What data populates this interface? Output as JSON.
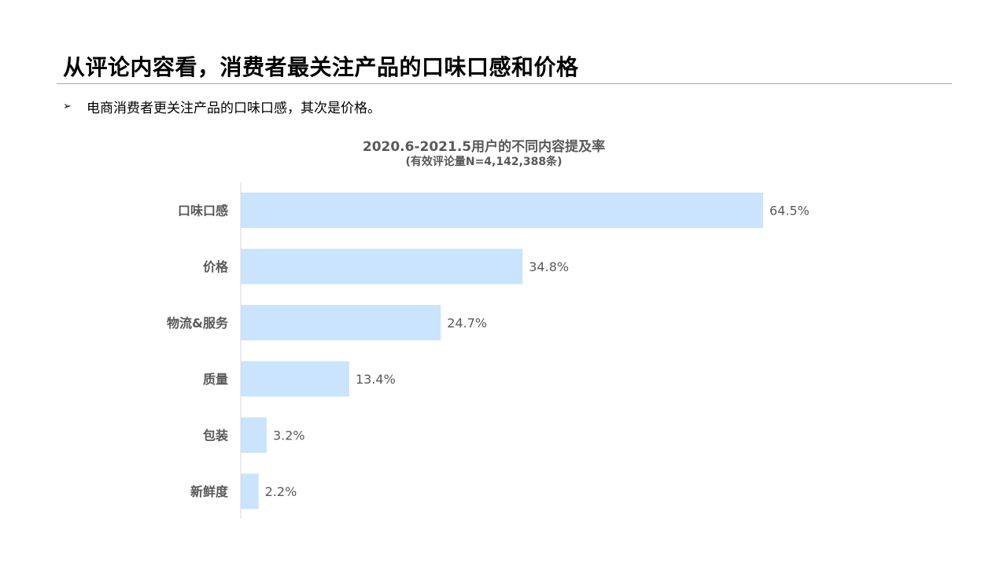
{
  "page": {
    "title": "从评论内容看，消费者最关注产品的口味口感和价格",
    "bullet": {
      "icon": "arrow-bullet-icon",
      "text": "电商消费者更关注产品的口味口感，其次是价格。"
    }
  },
  "chart_data": {
    "type": "bar",
    "orientation": "horizontal",
    "title": "2020.6-2021.5用户的不同内容提及率",
    "subtitle": "(有效评论量N=4,142,388条)",
    "categories": [
      "口味口感",
      "价格",
      "物流&服务",
      "质量",
      "包装",
      "新鲜度"
    ],
    "values": [
      64.5,
      34.8,
      24.7,
      13.4,
      3.2,
      2.2
    ],
    "value_labels": [
      "64.5%",
      "34.8%",
      "24.7%",
      "13.4%",
      "3.2%",
      "2.2%"
    ],
    "unit": "%",
    "xlim": [
      0,
      100
    ],
    "grid": false,
    "legend": "none",
    "colors": {
      "bar": "#c9e4fc",
      "axis": "#d9d9d9",
      "category_text": "#595959",
      "value_text": "#595959"
    }
  }
}
